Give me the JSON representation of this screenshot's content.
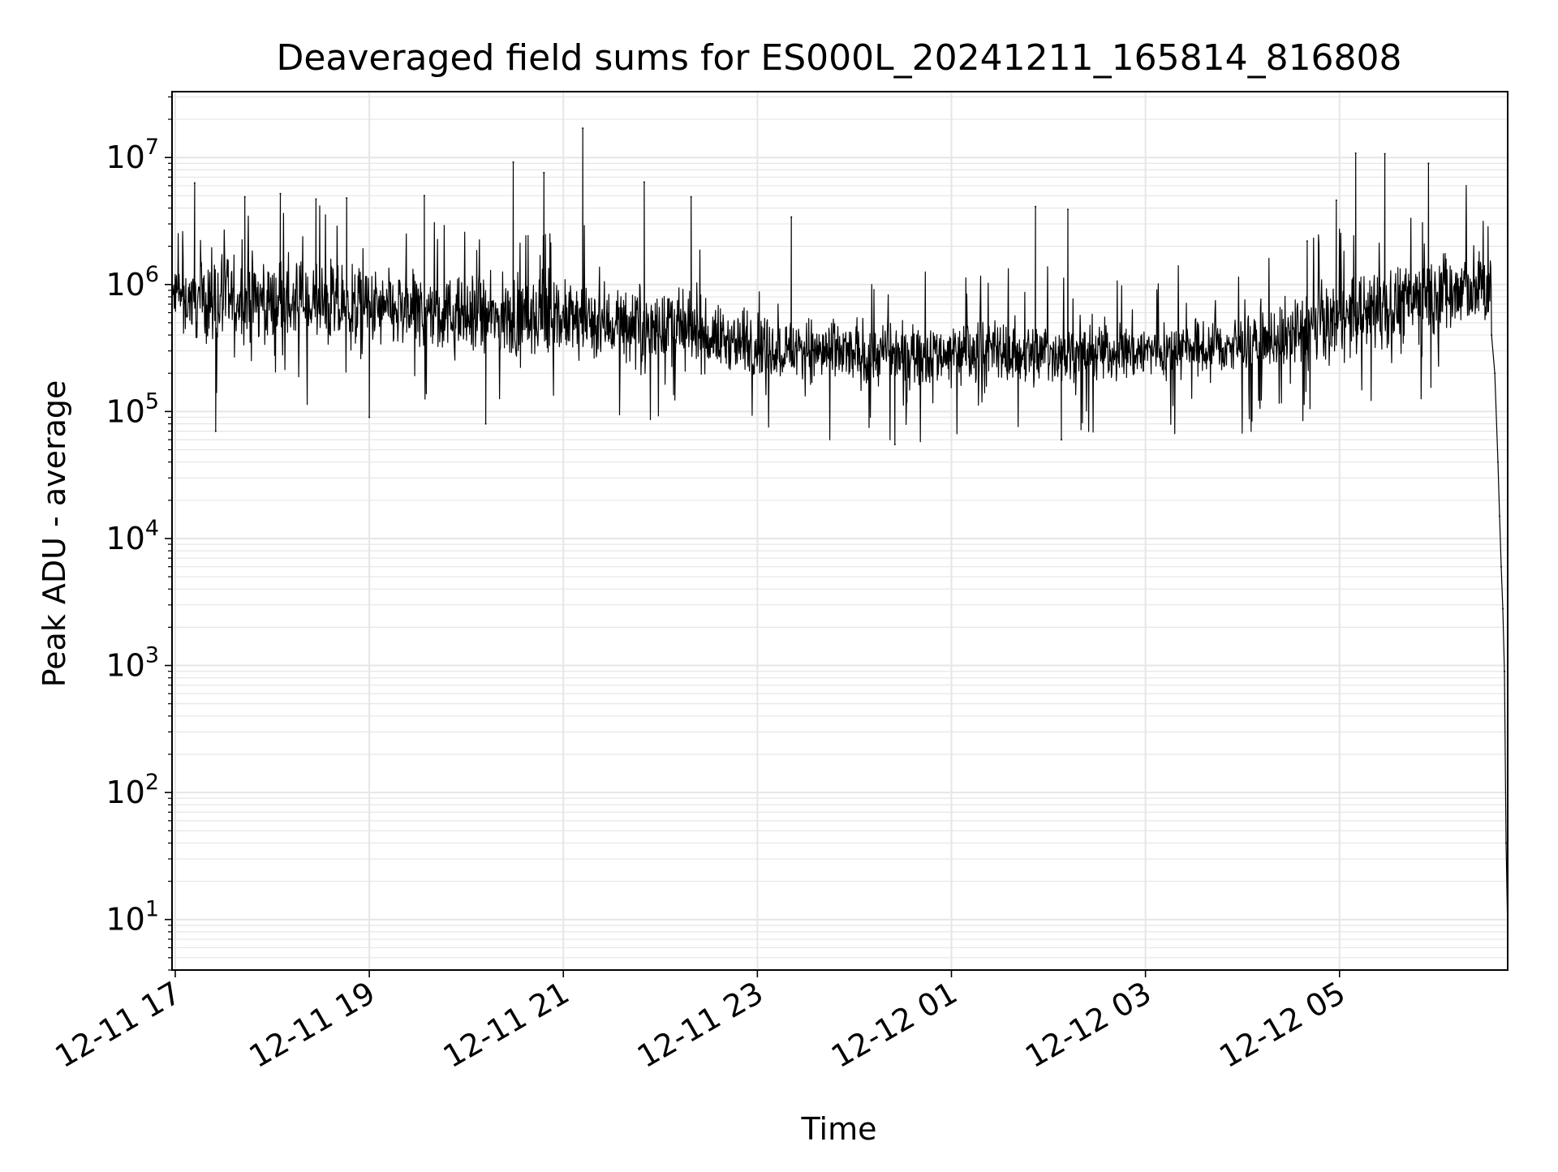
{
  "chart_data": {
    "type": "line",
    "title": "Deaveraged field sums for ES000L_20241211_165814_816808",
    "xlabel": "Time",
    "ylabel": "Peak ADU - average",
    "y_scale": "log",
    "ylim": [
      4,
      33000000
    ],
    "xlim": [
      "2024-12-11 16:58",
      "2024-12-12 06:44"
    ],
    "grid": true,
    "line_color": "#000000",
    "grid_color": "#e6e6e6",
    "x_ticks": [
      {
        "value": "2024-12-11 17:00",
        "label": "12-11 17"
      },
      {
        "value": "2024-12-11 19:00",
        "label": "12-11 19"
      },
      {
        "value": "2024-12-11 21:00",
        "label": "12-11 21"
      },
      {
        "value": "2024-12-11 23:00",
        "label": "12-11 23"
      },
      {
        "value": "2024-12-12 01:00",
        "label": "12-12 01"
      },
      {
        "value": "2024-12-12 03:00",
        "label": "12-12 03"
      },
      {
        "value": "2024-12-12 05:00",
        "label": "12-12 05"
      }
    ],
    "y_ticks": [
      {
        "value": 10,
        "base": "10",
        "exp": "1"
      },
      {
        "value": 100,
        "base": "10",
        "exp": "2"
      },
      {
        "value": 1000,
        "base": "10",
        "exp": "3"
      },
      {
        "value": 10000,
        "base": "10",
        "exp": "4"
      },
      {
        "value": 100000,
        "base": "10",
        "exp": "5"
      },
      {
        "value": 1000000,
        "base": "10",
        "exp": "6"
      },
      {
        "value": 10000000,
        "base": "10",
        "exp": "7"
      }
    ],
    "series": [
      {
        "band": [
          {
            "time": "2024-12-11 17:00",
            "low": 300000,
            "high": 2000000
          },
          {
            "time": "2024-12-11 18:00",
            "low": 250000,
            "high": 2200000
          },
          {
            "time": "2024-12-11 19:00",
            "low": 220000,
            "high": 1800000
          },
          {
            "time": "2024-12-11 20:00",
            "low": 200000,
            "high": 1500000
          },
          {
            "time": "2024-12-11 21:00",
            "low": 200000,
            "high": 1400000
          },
          {
            "time": "2024-12-11 22:00",
            "low": 180000,
            "high": 1200000
          },
          {
            "time": "2024-12-11 23:00",
            "low": 150000,
            "high": 700000
          },
          {
            "time": "2024-12-12 00:00",
            "low": 120000,
            "high": 650000
          },
          {
            "time": "2024-12-12 01:00",
            "low": 130000,
            "high": 650000
          },
          {
            "time": "2024-12-12 02:00",
            "low": 130000,
            "high": 650000
          },
          {
            "time": "2024-12-12 03:00",
            "low": 140000,
            "high": 650000
          },
          {
            "time": "2024-12-12 04:00",
            "low": 150000,
            "high": 700000
          },
          {
            "time": "2024-12-12 05:00",
            "low": 180000,
            "high": 1500000
          },
          {
            "time": "2024-12-12 06:00",
            "low": 250000,
            "high": 3000000
          },
          {
            "time": "2024-12-12 06:34",
            "low": 350000,
            "high": 2500000
          }
        ],
        "spikes": [
          {
            "time": "2024-12-11 17:12",
            "value": 6300000
          },
          {
            "time": "2024-12-11 17:25",
            "value": 70000
          },
          {
            "time": "2024-12-11 17:43",
            "value": 4900000
          },
          {
            "time": "2024-12-11 18:05",
            "value": 5200000
          },
          {
            "time": "2024-12-11 18:27",
            "value": 4700000
          },
          {
            "time": "2024-12-11 18:46",
            "value": 4800000
          },
          {
            "time": "2024-12-11 19:00",
            "value": 90000
          },
          {
            "time": "2024-12-11 19:34",
            "value": 5000000
          },
          {
            "time": "2024-12-11 20:12",
            "value": 80000
          },
          {
            "time": "2024-12-11 20:29",
            "value": 9200000
          },
          {
            "time": "2024-12-11 20:48",
            "value": 7600000
          },
          {
            "time": "2024-12-11 21:12",
            "value": 17000000
          },
          {
            "time": "2024-12-11 21:50",
            "value": 6400000
          },
          {
            "time": "2024-12-11 22:19",
            "value": 4900000
          },
          {
            "time": "2024-12-11 23:21",
            "value": 3400000
          },
          {
            "time": "2024-12-12 00:25",
            "value": 55000
          },
          {
            "time": "2024-12-12 01:52",
            "value": 4100000
          },
          {
            "time": "2024-12-12 02:08",
            "value": 60000
          },
          {
            "time": "2024-12-12 02:12",
            "value": 3900000
          },
          {
            "time": "2024-12-12 04:40",
            "value": 2200000
          },
          {
            "time": "2024-12-12 04:58",
            "value": 4600000
          },
          {
            "time": "2024-12-12 05:10",
            "value": 10800000
          },
          {
            "time": "2024-12-12 05:28",
            "value": 10700000
          },
          {
            "time": "2024-12-12 05:55",
            "value": 9000000
          }
        ],
        "tail": [
          {
            "time": "2024-12-12 06:34",
            "value": 400000
          },
          {
            "time": "2024-12-12 06:36",
            "value": 200000
          },
          {
            "time": "2024-12-12 06:38",
            "value": 40000
          },
          {
            "time": "2024-12-12 06:39",
            "value": 15000
          },
          {
            "time": "2024-12-12 06:40",
            "value": 6000
          },
          {
            "time": "2024-12-12 06:41",
            "value": 2800
          },
          {
            "time": "2024-12-12 06:42",
            "value": 900
          },
          {
            "time": "2024-12-12 06:43",
            "value": 40
          },
          {
            "time": "2024-12-12 06:44",
            "value": 8
          }
        ]
      }
    ]
  }
}
